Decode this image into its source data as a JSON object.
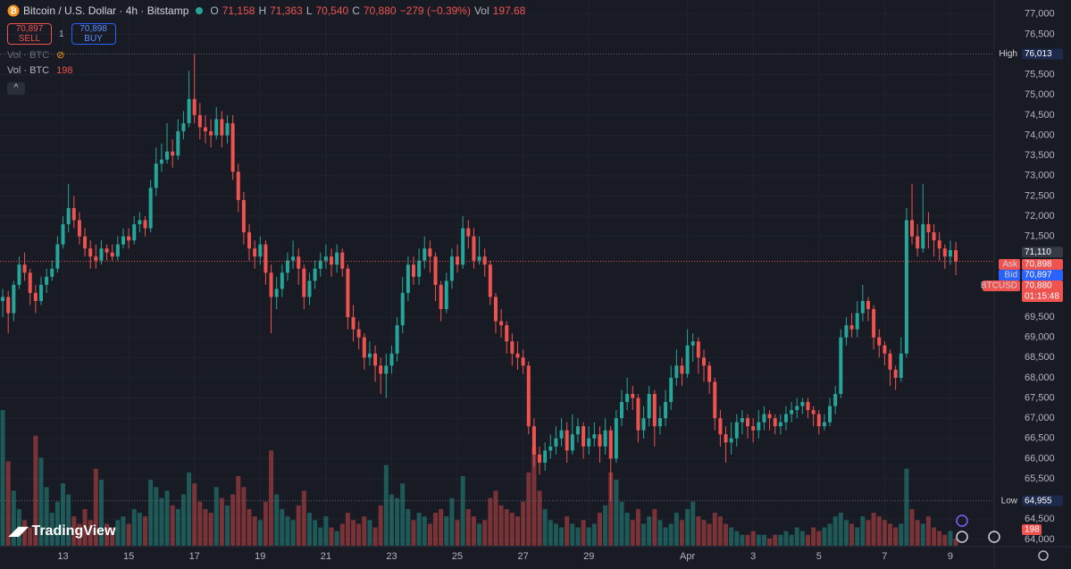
{
  "chart_data": {
    "type": "candlestick",
    "legend": {
      "symbol": "Bitcoin / U.S. Dollar · 4h · Bitstamp",
      "ohlc": [
        {
          "label": "O",
          "value": "71,158"
        },
        {
          "label": "H",
          "value": "71,363"
        },
        {
          "label": "L",
          "value": "70,540"
        },
        {
          "label": "C",
          "value": "70,880"
        }
      ],
      "change": "−279 (−0.39%)",
      "volume": {
        "label": "Vol",
        "value": "197.68"
      }
    },
    "trade": {
      "sell": {
        "price": "70,897",
        "label": "SELL"
      },
      "quantity": "1",
      "buy": {
        "price": "70,898",
        "label": "BUY"
      }
    },
    "indicators": [
      {
        "label": "Vol · BTC"
      },
      {
        "label": "Vol · BTC",
        "value": "198"
      }
    ],
    "branding": "TradingView",
    "up_color": "#26a69a",
    "down_color": "#ef5350",
    "grid": true,
    "ylim": [
      63820,
      77350
    ],
    "yticks": [
      {
        "value": 77000,
        "label": "77,000"
      },
      {
        "value": 76500,
        "label": "76,500"
      },
      {
        "value": 75500,
        "label": "75,500"
      },
      {
        "value": 75000,
        "label": "75,000"
      },
      {
        "value": 74500,
        "label": "74,500"
      },
      {
        "value": 74000,
        "label": "74,000"
      },
      {
        "value": 73500,
        "label": "73,500"
      },
      {
        "value": 73000,
        "label": "73,000"
      },
      {
        "value": 72500,
        "label": "72,500"
      },
      {
        "value": 72000,
        "label": "72,000"
      },
      {
        "value": 71500,
        "label": "71,500"
      },
      {
        "value": 69500,
        "label": "69,500"
      },
      {
        "value": 69000,
        "label": "69,000"
      },
      {
        "value": 68500,
        "label": "68,500"
      },
      {
        "value": 68000,
        "label": "68,000"
      },
      {
        "value": 67500,
        "label": "67,500"
      },
      {
        "value": 67000,
        "label": "67,000"
      },
      {
        "value": 66500,
        "label": "66,500"
      },
      {
        "value": 66000,
        "label": "66,000"
      },
      {
        "value": 65500,
        "label": "65,500"
      },
      {
        "value": 64500,
        "label": "64,500"
      },
      {
        "value": 64000,
        "label": "64,000"
      }
    ],
    "xlim": [
      -0.5,
      181
    ],
    "xticks": [
      {
        "value": 11,
        "label": "13"
      },
      {
        "value": 23,
        "label": "15"
      },
      {
        "value": 35,
        "label": "17"
      },
      {
        "value": 47,
        "label": "19"
      },
      {
        "value": 59,
        "label": "21"
      },
      {
        "value": 71,
        "label": "23"
      },
      {
        "value": 83,
        "label": "25"
      },
      {
        "value": 95,
        "label": "27"
      },
      {
        "value": 107,
        "label": "29"
      },
      {
        "value": 125,
        "label": "Apr"
      },
      {
        "value": 137,
        "label": "3"
      },
      {
        "value": 149,
        "label": "5"
      },
      {
        "value": 161,
        "label": "7"
      },
      {
        "value": 173,
        "label": "9"
      }
    ],
    "ohlc": [
      [
        69900,
        70200,
        69500,
        70000
      ],
      [
        70000,
        70150,
        69100,
        69600
      ],
      [
        69600,
        70400,
        69400,
        70300
      ],
      [
        70300,
        71000,
        70200,
        70800
      ],
      [
        70800,
        71100,
        70400,
        70600
      ],
      [
        70600,
        70700,
        69800,
        70100
      ],
      [
        70100,
        70300,
        69600,
        69900
      ],
      [
        69900,
        70500,
        69800,
        70300
      ],
      [
        70300,
        70700,
        70100,
        70500
      ],
      [
        70500,
        70900,
        70400,
        70700
      ],
      [
        70700,
        71500,
        70600,
        71300
      ],
      [
        71300,
        72000,
        71200,
        71800
      ],
      [
        71800,
        72800,
        71600,
        72200
      ],
      [
        72200,
        72500,
        71700,
        71900
      ],
      [
        71900,
        72100,
        71300,
        71500
      ],
      [
        71500,
        71700,
        71000,
        71200
      ],
      [
        71200,
        71400,
        70700,
        71000
      ],
      [
        71000,
        71300,
        70700,
        70900
      ],
      [
        70900,
        71400,
        70800,
        71200
      ],
      [
        71200,
        71300,
        70900,
        71100
      ],
      [
        71100,
        71300,
        70900,
        71000
      ],
      [
        71000,
        71500,
        70900,
        71300
      ],
      [
        71300,
        71700,
        71200,
        71500
      ],
      [
        71500,
        71700,
        71200,
        71400
      ],
      [
        71400,
        72000,
        71300,
        71800
      ],
      [
        71800,
        72100,
        71600,
        71900
      ],
      [
        71900,
        72000,
        71500,
        71700
      ],
      [
        71700,
        72900,
        71600,
        72700
      ],
      [
        72700,
        73700,
        72500,
        73300
      ],
      [
        73300,
        73800,
        73100,
        73400
      ],
      [
        73400,
        74300,
        73300,
        73600
      ],
      [
        73600,
        73900,
        73200,
        73500
      ],
      [
        73500,
        74400,
        73400,
        74100
      ],
      [
        74100,
        74600,
        73900,
        74300
      ],
      [
        74300,
        75600,
        74200,
        74900
      ],
      [
        74900,
        76013,
        74300,
        74500
      ],
      [
        74500,
        74800,
        73900,
        74200
      ],
      [
        74200,
        74500,
        73800,
        74100
      ],
      [
        74100,
        74400,
        73700,
        74000
      ],
      [
        74000,
        74700,
        73900,
        74400
      ],
      [
        74400,
        74600,
        73700,
        74000
      ],
      [
        74000,
        74500,
        73800,
        74300
      ],
      [
        74300,
        74500,
        72900,
        73100
      ],
      [
        73100,
        73300,
        72100,
        72400
      ],
      [
        72400,
        72600,
        71300,
        71600
      ],
      [
        71600,
        71800,
        70900,
        71200
      ],
      [
        71200,
        71400,
        70700,
        71000
      ],
      [
        71000,
        71500,
        70800,
        71300
      ],
      [
        71300,
        71400,
        70300,
        70600
      ],
      [
        70600,
        70800,
        69100,
        70000
      ],
      [
        70000,
        70500,
        69700,
        70200
      ],
      [
        70200,
        70800,
        70000,
        70600
      ],
      [
        70600,
        71100,
        70400,
        70900
      ],
      [
        70900,
        71400,
        70700,
        71000
      ],
      [
        71000,
        71200,
        70300,
        70700
      ],
      [
        70700,
        70800,
        69700,
        70000
      ],
      [
        70000,
        70600,
        69800,
        70400
      ],
      [
        70400,
        70900,
        70200,
        70700
      ],
      [
        70700,
        71100,
        70500,
        70900
      ],
      [
        70900,
        71300,
        70700,
        71000
      ],
      [
        71000,
        71200,
        70500,
        70800
      ],
      [
        70800,
        71300,
        70600,
        71100
      ],
      [
        71100,
        71200,
        70500,
        70700
      ],
      [
        70700,
        70800,
        69200,
        69500
      ],
      [
        69500,
        69800,
        68900,
        69200
      ],
      [
        69200,
        69400,
        68700,
        69000
      ],
      [
        69000,
        69100,
        68200,
        68500
      ],
      [
        68500,
        68900,
        68300,
        68600
      ],
      [
        68600,
        68800,
        67900,
        68300
      ],
      [
        68300,
        68500,
        67600,
        68100
      ],
      [
        68100,
        68600,
        67500,
        68300
      ],
      [
        68300,
        68800,
        68100,
        68600
      ],
      [
        68600,
        69500,
        68400,
        69300
      ],
      [
        69300,
        70500,
        69100,
        70100
      ],
      [
        70100,
        71000,
        69900,
        70800
      ],
      [
        70800,
        71000,
        70300,
        70500
      ],
      [
        70500,
        71200,
        70300,
        70900
      ],
      [
        70900,
        71500,
        70700,
        71200
      ],
      [
        71200,
        71400,
        70600,
        71000
      ],
      [
        71000,
        71100,
        69900,
        70300
      ],
      [
        70300,
        70400,
        69400,
        69700
      ],
      [
        69700,
        70600,
        69600,
        70400
      ],
      [
        70400,
        71200,
        70200,
        71000
      ],
      [
        71000,
        71300,
        70600,
        70800
      ],
      [
        70800,
        72000,
        70700,
        71700
      ],
      [
        71700,
        71900,
        71200,
        71500
      ],
      [
        71500,
        71700,
        70700,
        70900
      ],
      [
        70900,
        71500,
        70800,
        71000
      ],
      [
        71000,
        71200,
        70500,
        70800
      ],
      [
        70800,
        70900,
        69800,
        70000
      ],
      [
        70000,
        70100,
        69100,
        69400
      ],
      [
        69400,
        69700,
        69000,
        69300
      ],
      [
        69300,
        69400,
        68600,
        68900
      ],
      [
        68900,
        69100,
        68300,
        68600
      ],
      [
        68600,
        68900,
        68200,
        68500
      ],
      [
        68500,
        68700,
        68100,
        68300
      ],
      [
        68300,
        68400,
        66600,
        66800
      ],
      [
        66800,
        67000,
        65800,
        66100
      ],
      [
        66100,
        66300,
        65600,
        65900
      ],
      [
        65900,
        66400,
        65700,
        66200
      ],
      [
        66200,
        66600,
        66000,
        66300
      ],
      [
        66300,
        66800,
        66100,
        66500
      ],
      [
        66500,
        67000,
        66300,
        66700
      ],
      [
        66700,
        66900,
        65900,
        66200
      ],
      [
        66200,
        67100,
        66100,
        66600
      ],
      [
        66600,
        67000,
        66400,
        66800
      ],
      [
        66800,
        66900,
        66000,
        66300
      ],
      [
        66300,
        66800,
        66100,
        66500
      ],
      [
        66500,
        66900,
        66300,
        66600
      ],
      [
        66600,
        66800,
        65900,
        66300
      ],
      [
        66300,
        67000,
        66100,
        66700
      ],
      [
        66700,
        66800,
        64955,
        66000
      ],
      [
        66000,
        67200,
        65900,
        67000
      ],
      [
        67000,
        67700,
        66800,
        67400
      ],
      [
        67400,
        68000,
        67200,
        67600
      ],
      [
        67600,
        67800,
        67200,
        67500
      ],
      [
        67500,
        67600,
        66400,
        66700
      ],
      [
        66700,
        67300,
        66500,
        67000
      ],
      [
        67000,
        67800,
        66800,
        67600
      ],
      [
        67600,
        67700,
        66300,
        66800
      ],
      [
        66800,
        67300,
        66600,
        67000
      ],
      [
        67000,
        67700,
        66800,
        67400
      ],
      [
        67400,
        68300,
        67200,
        68000
      ],
      [
        68000,
        68700,
        67800,
        68300
      ],
      [
        68300,
        68500,
        67800,
        68100
      ],
      [
        68100,
        69200,
        68000,
        68800
      ],
      [
        68800,
        69100,
        68400,
        68900
      ],
      [
        68900,
        69000,
        68100,
        68500
      ],
      [
        68500,
        68700,
        67900,
        68300
      ],
      [
        68300,
        68400,
        67600,
        67900
      ],
      [
        67900,
        68000,
        66700,
        67000
      ],
      [
        67000,
        67200,
        66300,
        66600
      ],
      [
        66600,
        66800,
        65900,
        66400
      ],
      [
        66400,
        66900,
        66100,
        66500
      ],
      [
        66500,
        67100,
        66300,
        66900
      ],
      [
        66900,
        67200,
        66600,
        67000
      ],
      [
        67000,
        67100,
        66500,
        66800
      ],
      [
        66800,
        67000,
        66400,
        66700
      ],
      [
        66700,
        67200,
        66500,
        66900
      ],
      [
        66900,
        67300,
        66700,
        67100
      ],
      [
        67100,
        67200,
        66700,
        67000
      ],
      [
        67000,
        67100,
        66600,
        66800
      ],
      [
        66800,
        67100,
        66600,
        66900
      ],
      [
        66900,
        67300,
        66700,
        67100
      ],
      [
        67100,
        67400,
        66900,
        67200
      ],
      [
        67200,
        67500,
        67000,
        67300
      ],
      [
        67300,
        67500,
        67100,
        67400
      ],
      [
        67400,
        67500,
        67000,
        67200
      ],
      [
        67200,
        67300,
        66800,
        67100
      ],
      [
        67100,
        67200,
        66600,
        66800
      ],
      [
        66800,
        67100,
        66700,
        66900
      ],
      [
        66900,
        67500,
        66800,
        67300
      ],
      [
        67300,
        67800,
        67100,
        67600
      ],
      [
        67600,
        69200,
        67500,
        69000
      ],
      [
        69000,
        69500,
        68800,
        69300
      ],
      [
        69300,
        69600,
        69000,
        69200
      ],
      [
        69200,
        69900,
        69000,
        69600
      ],
      [
        69600,
        70300,
        69400,
        69900
      ],
      [
        69900,
        70000,
        69400,
        69700
      ],
      [
        69700,
        69800,
        68700,
        69000
      ],
      [
        69000,
        69200,
        68500,
        68800
      ],
      [
        68800,
        68900,
        68300,
        68600
      ],
      [
        68600,
        68700,
        67800,
        68200
      ],
      [
        68200,
        68300,
        67700,
        68000
      ],
      [
        68000,
        69000,
        67900,
        68600
      ],
      [
        68600,
        72200,
        68500,
        71900
      ],
      [
        71900,
        72800,
        71300,
        71500
      ],
      [
        71500,
        71800,
        71000,
        71200
      ],
      [
        71200,
        72800,
        71100,
        71800
      ],
      [
        71800,
        72100,
        71200,
        71600
      ],
      [
        71600,
        71800,
        71000,
        71400
      ],
      [
        71400,
        71600,
        70900,
        71200
      ],
      [
        71200,
        71300,
        70700,
        71000
      ],
      [
        71000,
        71400,
        70800,
        71159
      ],
      [
        71158,
        71363,
        70540,
        70880
      ]
    ],
    "volume": [
      3700,
      2300,
      1500,
      1000,
      700,
      500,
      3000,
      2400,
      1600,
      900,
      1200,
      1700,
      1400,
      800,
      600,
      1000,
      700,
      2100,
      1800,
      600,
      500,
      700,
      800,
      600,
      1000,
      900,
      800,
      1800,
      1600,
      1300,
      1500,
      1100,
      1000,
      1400,
      2000,
      1700,
      1200,
      1000,
      900,
      1600,
      1300,
      1100,
      1400,
      1900,
      1600,
      1000,
      800,
      700,
      1200,
      2600,
      1400,
      1000,
      800,
      700,
      1100,
      1500,
      900,
      700,
      500,
      800,
      500,
      400,
      600,
      900,
      700,
      600,
      800,
      700,
      500,
      1100,
      2200,
      1400,
      1300,
      1700,
      1000,
      700,
      900,
      800,
      600,
      900,
      1000,
      800,
      1300,
      700,
      1900,
      1000,
      800,
      600,
      700,
      1300,
      1500,
      1100,
      1000,
      900,
      800,
      1200,
      2000,
      2700,
      1500,
      1000,
      700,
      600,
      500,
      800,
      600,
      500,
      700,
      500,
      600,
      900,
      1100,
      2000,
      1800,
      1200,
      900,
      700,
      1000,
      600,
      800,
      1000,
      700,
      500,
      600,
      900,
      700,
      1000,
      1200,
      800,
      700,
      600,
      900,
      800,
      600,
      500,
      400,
      300,
      300,
      400,
      300,
      300,
      200,
      300,
      300,
      400,
      300,
      500,
      400,
      300,
      500,
      400,
      500,
      600,
      800,
      900,
      700,
      600,
      500,
      800,
      700,
      900,
      800,
      700,
      600,
      500,
      600,
      2100,
      1000,
      700,
      600,
      800,
      500,
      400,
      300,
      400,
      197.68
    ],
    "volume_tag": "198",
    "price_tags": [
      {
        "label": "High",
        "value": 76013,
        "value_label": "76,013"
      },
      {
        "label": "Low",
        "value": 64955,
        "value_label": "64,955"
      },
      {
        "value": 71110,
        "value_label": "71,110"
      },
      {
        "label": "Ask",
        "value": 70898,
        "value_label": "70,898"
      },
      {
        "label": "Bid",
        "value": 70897,
        "value_label": "70,897"
      },
      {
        "label": "BTCUSD",
        "value": 70880,
        "value_label": "70,880",
        "countdown": "01:15:48"
      }
    ]
  }
}
